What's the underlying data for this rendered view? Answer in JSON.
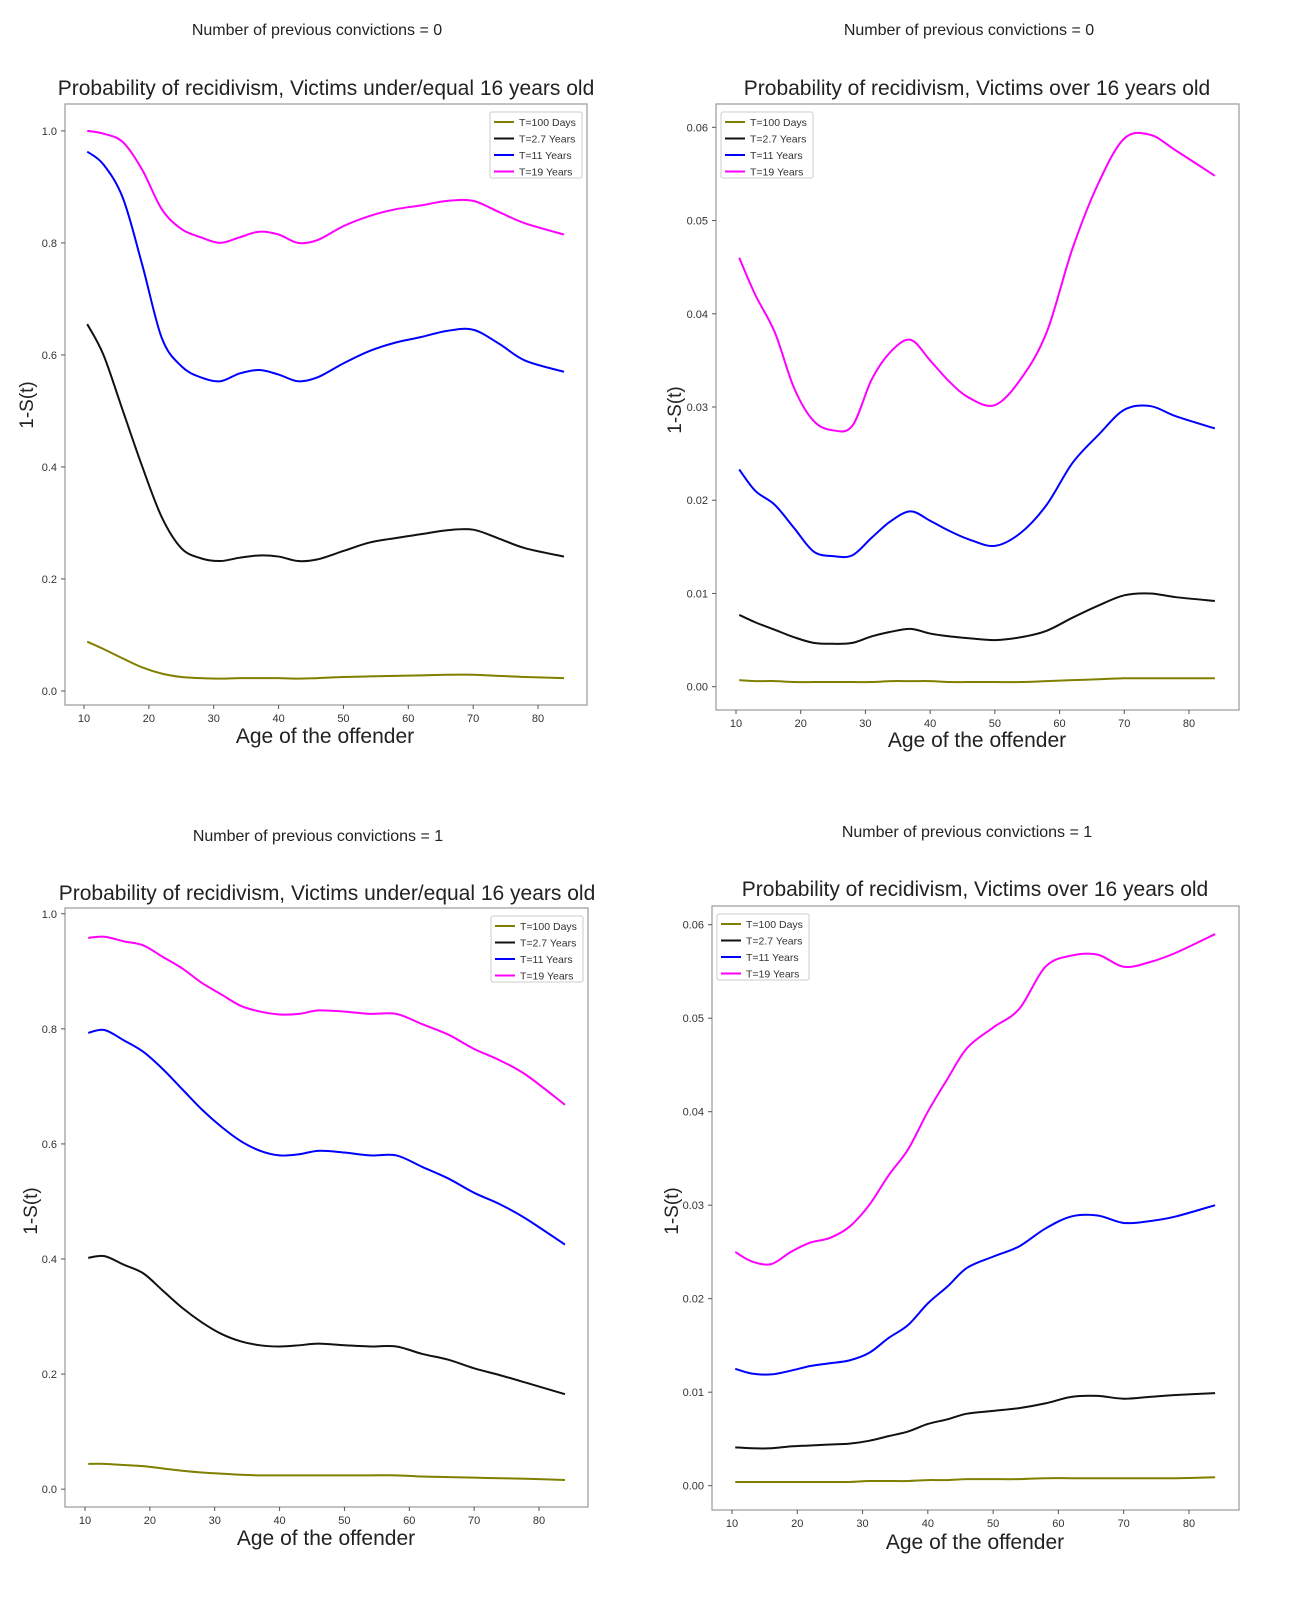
{
  "chart_data": [
    {
      "type": "line",
      "suptitle": "Number of previous convictions = 0",
      "title": "Probability of recidivism, Victims under/equal 16 years old",
      "xlabel": "Age of the offender",
      "ylabel": "1-S(t)",
      "xlim": [
        7.07,
        87.55
      ],
      "ylim": [
        -0.025,
        1.048
      ],
      "xticks": [
        "10",
        "20",
        "30",
        "40",
        "50",
        "60",
        "70",
        "80"
      ],
      "yticks": [
        "0.0",
        "0.2",
        "0.4",
        "0.6",
        "0.8",
        "1.0"
      ],
      "legend_position": "top-right",
      "grid": false,
      "x": [
        10.5,
        13,
        16,
        19,
        22,
        25,
        28,
        31,
        34,
        37,
        40,
        43,
        46,
        50,
        54,
        58,
        62,
        66,
        70,
        74,
        78,
        84
      ],
      "series": [
        {
          "name": "T=100 Days",
          "color": "#808000",
          "values": [
            0.088,
            0.075,
            0.058,
            0.042,
            0.031,
            0.025,
            0.023,
            0.022,
            0.023,
            0.023,
            0.023,
            0.022,
            0.023,
            0.025,
            0.026,
            0.027,
            0.028,
            0.029,
            0.029,
            0.027,
            0.025,
            0.023
          ]
        },
        {
          "name": "T=2.7 Years",
          "color": "#111111",
          "values": [
            0.655,
            0.6,
            0.5,
            0.4,
            0.31,
            0.255,
            0.237,
            0.232,
            0.238,
            0.242,
            0.24,
            0.232,
            0.235,
            0.25,
            0.265,
            0.273,
            0.28,
            0.287,
            0.288,
            0.272,
            0.255,
            0.24
          ]
        },
        {
          "name": "T=11 Years",
          "color": "#0000ff",
          "values": [
            0.963,
            0.94,
            0.88,
            0.76,
            0.63,
            0.58,
            0.56,
            0.553,
            0.567,
            0.573,
            0.565,
            0.553,
            0.56,
            0.585,
            0.607,
            0.622,
            0.632,
            0.643,
            0.645,
            0.62,
            0.59,
            0.57
          ]
        },
        {
          "name": "T=19 Years",
          "color": "#ff00ff",
          "values": [
            1.0,
            0.995,
            0.98,
            0.93,
            0.86,
            0.825,
            0.81,
            0.8,
            0.81,
            0.82,
            0.815,
            0.8,
            0.805,
            0.83,
            0.848,
            0.86,
            0.867,
            0.875,
            0.875,
            0.855,
            0.835,
            0.815
          ]
        }
      ]
    },
    {
      "type": "line",
      "suptitle": "Number of previous convictions = 0",
      "title": "Probability of recidivism, Victims over 16 years old",
      "xlabel": "Age of the offender",
      "ylabel": "1-S(t)",
      "xlim": [
        6.91,
        87.73
      ],
      "ylim": [
        -0.0025,
        0.0625
      ],
      "xticks": [
        "10",
        "20",
        "30",
        "40",
        "50",
        "60",
        "70",
        "80"
      ],
      "yticks": [
        "0.00",
        "0.01",
        "0.02",
        "0.03",
        "0.04",
        "0.05",
        "0.06"
      ],
      "legend_position": "top-left",
      "grid": false,
      "x": [
        10.5,
        13,
        16,
        19,
        22,
        25,
        28,
        31,
        34,
        37,
        40,
        43,
        46,
        50,
        54,
        58,
        62,
        66,
        70,
        74,
        78,
        84
      ],
      "series": [
        {
          "name": "T=100 Days",
          "color": "#808000",
          "values": [
            0.0007,
            0.0006,
            0.0006,
            0.0005,
            0.0005,
            0.0005,
            0.0005,
            0.0005,
            0.0006,
            0.0006,
            0.0006,
            0.0005,
            0.0005,
            0.0005,
            0.0005,
            0.0006,
            0.0007,
            0.0008,
            0.0009,
            0.0009,
            0.0009,
            0.0009
          ]
        },
        {
          "name": "T=2.7 Years",
          "color": "#111111",
          "values": [
            0.0077,
            0.0069,
            0.0061,
            0.0053,
            0.0047,
            0.0046,
            0.0047,
            0.0054,
            0.0059,
            0.0062,
            0.0057,
            0.0054,
            0.0052,
            0.005,
            0.0053,
            0.006,
            0.0074,
            0.0087,
            0.0098,
            0.01,
            0.0096,
            0.0092
          ]
        },
        {
          "name": "T=11 Years",
          "color": "#0000ff",
          "values": [
            0.0233,
            0.021,
            0.0195,
            0.017,
            0.0145,
            0.014,
            0.0141,
            0.016,
            0.0178,
            0.0188,
            0.0178,
            0.0167,
            0.0158,
            0.0151,
            0.0165,
            0.0195,
            0.024,
            0.027,
            0.0297,
            0.0301,
            0.029,
            0.0277
          ]
        },
        {
          "name": "T=19 Years",
          "color": "#ff00ff",
          "values": [
            0.046,
            0.042,
            0.038,
            0.032,
            0.0285,
            0.0275,
            0.028,
            0.033,
            0.036,
            0.0372,
            0.035,
            0.0327,
            0.031,
            0.0302,
            0.033,
            0.038,
            0.047,
            0.054,
            0.0588,
            0.0592,
            0.0575,
            0.0548
          ]
        }
      ]
    },
    {
      "type": "line",
      "suptitle": "Number of previous convictions = 1",
      "title": "Probability of recidivism, Victims under/equal 16 years old",
      "xlabel": "Age of the offender",
      "ylabel": "1-S(t)",
      "xlim": [
        6.92,
        87.55
      ],
      "ylim": [
        -0.031,
        1.01
      ],
      "xticks": [
        "10",
        "20",
        "30",
        "40",
        "50",
        "60",
        "70",
        "80"
      ],
      "yticks": [
        "0.0",
        "0.2",
        "0.4",
        "0.6",
        "0.8",
        "1.0"
      ],
      "legend_position": "top-right",
      "grid": false,
      "x": [
        10.5,
        13,
        16,
        19,
        22,
        25,
        28,
        31,
        34,
        37,
        40,
        43,
        46,
        50,
        54,
        58,
        62,
        66,
        70,
        74,
        78,
        84
      ],
      "series": [
        {
          "name": "T=100 Days",
          "color": "#808000",
          "values": [
            0.044,
            0.044,
            0.042,
            0.04,
            0.036,
            0.032,
            0.029,
            0.027,
            0.025,
            0.024,
            0.024,
            0.024,
            0.024,
            0.024,
            0.024,
            0.024,
            0.022,
            0.021,
            0.02,
            0.019,
            0.018,
            0.016
          ]
        },
        {
          "name": "T=2.7 Years",
          "color": "#111111",
          "values": [
            0.402,
            0.405,
            0.39,
            0.375,
            0.345,
            0.315,
            0.29,
            0.27,
            0.257,
            0.25,
            0.248,
            0.25,
            0.253,
            0.25,
            0.248,
            0.248,
            0.235,
            0.225,
            0.21,
            0.198,
            0.185,
            0.165
          ]
        },
        {
          "name": "T=11 Years",
          "color": "#0000ff",
          "values": [
            0.793,
            0.798,
            0.78,
            0.76,
            0.73,
            0.695,
            0.66,
            0.63,
            0.605,
            0.588,
            0.58,
            0.582,
            0.588,
            0.585,
            0.58,
            0.58,
            0.56,
            0.54,
            0.515,
            0.495,
            0.47,
            0.425
          ]
        },
        {
          "name": "T=19 Years",
          "color": "#ff00ff",
          "values": [
            0.958,
            0.96,
            0.952,
            0.945,
            0.925,
            0.905,
            0.88,
            0.86,
            0.84,
            0.83,
            0.825,
            0.826,
            0.832,
            0.83,
            0.826,
            0.826,
            0.808,
            0.79,
            0.765,
            0.745,
            0.72,
            0.668
          ]
        }
      ]
    },
    {
      "type": "line",
      "suptitle": "Number of previous convictions = 1",
      "title": "Probability of recidivism, Victims over 16 years old",
      "xlabel": "Age of the offender",
      "ylabel": "1-S(t)",
      "xlim": [
        6.94,
        87.66
      ],
      "ylim": [
        -0.0026,
        0.062
      ],
      "xticks": [
        "10",
        "20",
        "30",
        "40",
        "50",
        "60",
        "70",
        "80"
      ],
      "yticks": [
        "0.00",
        "0.01",
        "0.02",
        "0.03",
        "0.04",
        "0.05",
        "0.06"
      ],
      "legend_position": "top-left",
      "grid": false,
      "x": [
        10.5,
        13,
        16,
        19,
        22,
        25,
        28,
        31,
        34,
        37,
        40,
        43,
        46,
        50,
        54,
        58,
        62,
        66,
        70,
        74,
        78,
        84
      ],
      "series": [
        {
          "name": "T=100 Days",
          "color": "#808000",
          "values": [
            0.0004,
            0.0004,
            0.0004,
            0.0004,
            0.0004,
            0.0004,
            0.0004,
            0.0005,
            0.0005,
            0.0005,
            0.0006,
            0.0006,
            0.0007,
            0.0007,
            0.0007,
            0.0008,
            0.0008,
            0.0008,
            0.0008,
            0.0008,
            0.0008,
            0.0009
          ]
        },
        {
          "name": "T=2.7 Years",
          "color": "#111111",
          "values": [
            0.0041,
            0.004,
            0.004,
            0.0042,
            0.0043,
            0.0044,
            0.0045,
            0.0048,
            0.0053,
            0.0058,
            0.0066,
            0.0071,
            0.0077,
            0.008,
            0.0083,
            0.0088,
            0.0095,
            0.0096,
            0.0093,
            0.0095,
            0.0097,
            0.0099
          ]
        },
        {
          "name": "T=11 Years",
          "color": "#0000ff",
          "values": [
            0.0125,
            0.012,
            0.0119,
            0.0123,
            0.0128,
            0.0131,
            0.0134,
            0.0142,
            0.0158,
            0.0172,
            0.0195,
            0.0213,
            0.0233,
            0.0245,
            0.0256,
            0.0275,
            0.0288,
            0.0289,
            0.0281,
            0.0283,
            0.0288,
            0.03
          ]
        },
        {
          "name": "T=19 Years",
          "color": "#ff00ff",
          "values": [
            0.025,
            0.024,
            0.0237,
            0.025,
            0.026,
            0.0265,
            0.0277,
            0.03,
            0.0332,
            0.036,
            0.04,
            0.0435,
            0.0468,
            0.049,
            0.051,
            0.0555,
            0.0567,
            0.0568,
            0.0555,
            0.056,
            0.057,
            0.059
          ]
        }
      ]
    }
  ]
}
